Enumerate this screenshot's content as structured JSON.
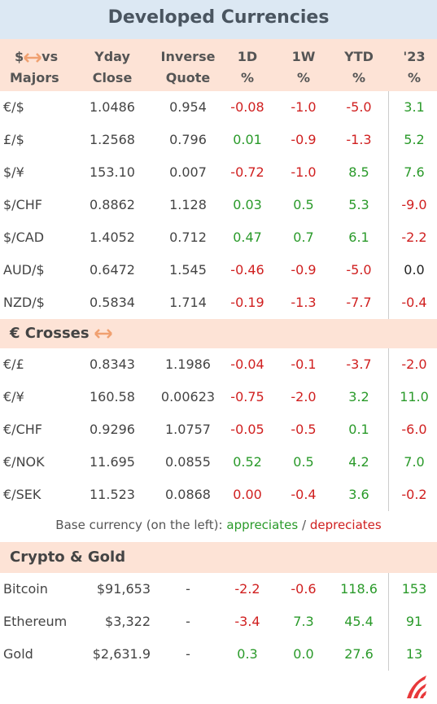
{
  "title": "Developed Currencies",
  "header": {
    "first": [
      "$",
      "vs",
      "Majors"
    ],
    "columns": [
      [
        "Yday",
        "Close"
      ],
      [
        "Inverse",
        "Quote"
      ],
      [
        "1D",
        "%"
      ],
      [
        "1W",
        "%"
      ],
      [
        "YTD",
        "%"
      ],
      [
        "'23",
        "%"
      ]
    ]
  },
  "majors": {
    "rows": [
      {
        "cells": [
          "€/$",
          "1.0486",
          "0.954",
          "-0.08",
          "-1.0",
          "-5.0",
          "3.1"
        ],
        "colors": [
          "#d02020",
          "#d02020",
          "#d02020",
          "#2a9a2a"
        ]
      },
      {
        "cells": [
          "£/$",
          "1.2568",
          "0.796",
          "0.01",
          "-0.9",
          "-1.3",
          "5.2"
        ],
        "colors": [
          "#2a9a2a",
          "#d02020",
          "#d02020",
          "#2a9a2a"
        ]
      },
      {
        "cells": [
          "$/¥",
          "153.10",
          "0.007",
          "-0.72",
          "-1.0",
          "8.5",
          "7.6"
        ],
        "colors": [
          "#d02020",
          "#d02020",
          "#2a9a2a",
          "#2a9a2a"
        ]
      },
      {
        "cells": [
          "$/CHF",
          "0.8862",
          "1.128",
          "0.03",
          "0.5",
          "5.3",
          "-9.0"
        ],
        "colors": [
          "#2a9a2a",
          "#2a9a2a",
          "#2a9a2a",
          "#d02020"
        ]
      },
      {
        "cells": [
          "$/CAD",
          "1.4052",
          "0.712",
          "0.47",
          "0.7",
          "6.1",
          "-2.2"
        ],
        "colors": [
          "#2a9a2a",
          "#2a9a2a",
          "#2a9a2a",
          "#d02020"
        ]
      },
      {
        "cells": [
          "AUD/$",
          "0.6472",
          "1.545",
          "-0.46",
          "-0.9",
          "-5.0",
          "0.0"
        ],
        "colors": [
          "#d02020",
          "#d02020",
          "#d02020",
          "#222222"
        ]
      },
      {
        "cells": [
          "NZD/$",
          "0.5834",
          "1.714",
          "-0.19",
          "-1.3",
          "-7.7",
          "-0.4"
        ],
        "colors": [
          "#d02020",
          "#d02020",
          "#d02020",
          "#d02020"
        ]
      }
    ]
  },
  "crosses": {
    "title": "€ Crosses",
    "rows": [
      {
        "cells": [
          "€/£",
          "0.8343",
          "1.1986",
          "-0.04",
          "-0.1",
          "-3.7",
          "-2.0"
        ],
        "colors": [
          "#d02020",
          "#d02020",
          "#d02020",
          "#d02020"
        ]
      },
      {
        "cells": [
          "€/¥",
          "160.58",
          "0.00623",
          "-0.75",
          "-2.0",
          "3.2",
          "11.0"
        ],
        "colors": [
          "#d02020",
          "#d02020",
          "#2a9a2a",
          "#2a9a2a"
        ]
      },
      {
        "cells": [
          "€/CHF",
          "0.9296",
          "1.0757",
          "-0.05",
          "-0.5",
          "0.1",
          "-6.0"
        ],
        "colors": [
          "#d02020",
          "#d02020",
          "#2a9a2a",
          "#d02020"
        ]
      },
      {
        "cells": [
          "€/NOK",
          "11.695",
          "0.0855",
          "0.52",
          "0.5",
          "4.2",
          "7.0"
        ],
        "colors": [
          "#2a9a2a",
          "#2a9a2a",
          "#2a9a2a",
          "#2a9a2a"
        ]
      },
      {
        "cells": [
          "€/SEK",
          "11.523",
          "0.0868",
          "0.00",
          "-0.4",
          "3.6",
          "-0.2"
        ],
        "colors": [
          "#d02020",
          "#d02020",
          "#2a9a2a",
          "#d02020"
        ]
      }
    ]
  },
  "note": {
    "text": "Base currency (on the left):",
    "up": "appreciates",
    "sep": "/",
    "down": "depreciates"
  },
  "crypto": {
    "title": "Crypto & Gold",
    "rows": [
      {
        "cells": [
          "Bitcoin",
          "$91,653",
          "-",
          "-2.2",
          "-0.6",
          "118.6",
          "153"
        ],
        "colors": [
          "#d02020",
          "#d02020",
          "#2a9a2a",
          "#2a9a2a"
        ]
      },
      {
        "cells": [
          "Ethereum",
          "$3,322",
          "-",
          "-3.4",
          "7.3",
          "45.4",
          "91"
        ],
        "colors": [
          "#d02020",
          "#2a9a2a",
          "#2a9a2a",
          "#2a9a2a"
        ]
      },
      {
        "cells": [
          "Gold",
          "$2,631.9",
          "-",
          "0.3",
          "0.0",
          "27.6",
          "13"
        ],
        "colors": [
          "#2a9a2a",
          "#2a9a2a",
          "#2a9a2a",
          "#2a9a2a"
        ]
      }
    ]
  }
}
